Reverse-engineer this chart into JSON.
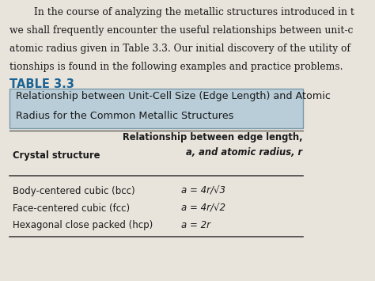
{
  "page_bg": "#e8e4dc",
  "intro_text_lines": [
    "        In the course of analyzing the metallic structures introduced in t",
    "we shall frequently encounter the useful relationships between unit-c",
    "atomic radius given in Table 3.3. Our initial discovery of the utility of",
    "tionships is found in the following examples and practice problems."
  ],
  "table_label": "TABLE 3.3",
  "table_label_color": "#1a6496",
  "header_bg": "#b8cdd8",
  "header_border": "#7a9aaa",
  "header_text_line1": "Relationship between Unit-Cell Size (Edge Length) and Atomic",
  "header_text_line2": "Radius for the Common Metallic Structures",
  "col1_header": "Crystal structure",
  "col2_header_line1": "Relationship between edge length,",
  "col2_header_line2": "a, and atomic radius, r",
  "rows": [
    [
      "Body-centered cubic (bcc)",
      "a = 4r/√3"
    ],
    [
      "Face-centered cubic (fcc)",
      "a = 4r/√2"
    ],
    [
      "Hexagonal close packed (hcp)",
      "a = 2r"
    ]
  ],
  "line_color": "#444444",
  "text_color": "#1a1a1a",
  "intro_fontsize": 8.8,
  "table_label_fontsize": 10.5,
  "header_text_fontsize": 9.2,
  "col_header_fontsize": 8.3,
  "row_fontsize": 8.5
}
